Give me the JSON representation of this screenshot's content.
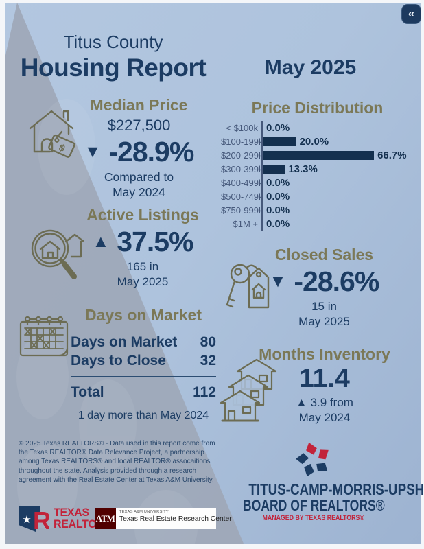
{
  "page": {
    "title_line1": "Titus County",
    "title_line2": "Housing Report",
    "period": "May 2025",
    "collapse_label": "«"
  },
  "colors": {
    "navy": "#1c3c63",
    "bar_navy": "#14304f",
    "olive": "#7b7857",
    "icon_olive": "#6c6c53",
    "brand_red": "#c2233a",
    "maroon": "#500000",
    "bg_light": "#b3c7e0",
    "bg_light2": "#9db3d1",
    "band_gray": "#9ea8b8"
  },
  "sections": {
    "median_price": {
      "heading": "Median Price",
      "value": "$227,500",
      "arrow": "▼",
      "change": "-28.9%",
      "note_line1": "Compared to",
      "note_line2": "May 2024",
      "icon": "house-price-tag-icon"
    },
    "active_listings": {
      "heading": "Active Listings",
      "arrow": "▲",
      "change": "37.5%",
      "note_line1": "165 in",
      "note_line2": "May 2025",
      "icon": "magnifier-house-icon"
    },
    "closed_sales": {
      "heading": "Closed Sales",
      "arrow": "▼",
      "change": "-28.6%",
      "note_line1": "15 in",
      "note_line2": "May 2025",
      "icon": "key-house-tag-icon"
    },
    "days_on_market": {
      "heading": "Days on Market",
      "rows": [
        {
          "label": "Days on Market",
          "value": "80"
        },
        {
          "label": "Days to Close",
          "value": "32"
        }
      ],
      "total_label": "Total",
      "total_value": "112",
      "note": "1 day more than May 2024",
      "icon": "calendar-icon"
    },
    "months_inventory": {
      "heading": "Months Inventory",
      "value": "11.4",
      "change_line1": "▲ 3.9 from",
      "change_line2": "May 2024",
      "icon": "houses-stack-icon"
    }
  },
  "chart_data": {
    "type": "bar",
    "orientation": "horizontal",
    "title": "Price Distribution",
    "categories": [
      "< $100k",
      "$100-199k",
      "$200-299k",
      "$300-399k",
      "$400-499k",
      "$500-749k",
      "$750-999k",
      "$1M +"
    ],
    "values": [
      0.0,
      20.0,
      66.7,
      13.3,
      0.0,
      0.0,
      0.0,
      0.0
    ],
    "value_labels": [
      "0.0%",
      "20.0%",
      "66.7%",
      "13.3%",
      "0.0%",
      "0.0%",
      "0.0%",
      "0.0%"
    ],
    "xlabel": "",
    "ylabel": "",
    "xlim": [
      0,
      100
    ],
    "grid": false,
    "legend": false,
    "bar_color": "#14304f"
  },
  "footer": {
    "disclaimer": "© 2025 Texas REALTORS® - Data used in this report come from the Texas REALTOR® Data Relevance Project, a partnership among Texas REALTORS® and local REALTOR® assocaitions throughout the state. Analysis provided through a research agreement with the Real Estate Center at Texas A&M University.",
    "texas_realtors": {
      "line1": "TEXAS",
      "line2": "REALTORS®"
    },
    "tamu": {
      "mark": "ATM",
      "line1": "TEXAS A&M UNIVERSITY",
      "line2": "Texas Real Estate Research Center"
    },
    "board": {
      "line1": "TITUS-CAMP-MORRIS-UPSHUR",
      "line2": "BOARD OF REALTORS®",
      "line3": "MANAGED BY TEXAS REALTORS®"
    }
  }
}
